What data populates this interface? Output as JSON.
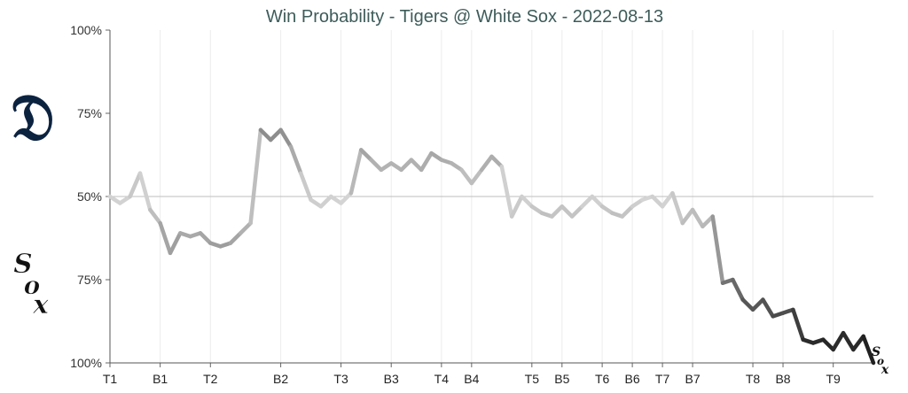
{
  "chart_data": {
    "type": "line",
    "title": "Win Probability - Tigers @ White Sox - 2022-08-13",
    "ylim": [
      0,
      100
    ],
    "y_tick_labels": [
      "100%",
      "75%",
      "50%",
      "75%",
      "100%"
    ],
    "x_ticks": [
      {
        "label": "T1",
        "at": 0
      },
      {
        "label": "B1",
        "at": 5
      },
      {
        "label": "T2",
        "at": 10
      },
      {
        "label": "B2",
        "at": 17
      },
      {
        "label": "T3",
        "at": 23
      },
      {
        "label": "B3",
        "at": 28
      },
      {
        "label": "T4",
        "at": 33
      },
      {
        "label": "B4",
        "at": 36
      },
      {
        "label": "T5",
        "at": 42
      },
      {
        "label": "B5",
        "at": 45
      },
      {
        "label": "T6",
        "at": 49
      },
      {
        "label": "B6",
        "at": 52
      },
      {
        "label": "T7",
        "at": 55
      },
      {
        "label": "B7",
        "at": 58
      },
      {
        "label": "T8",
        "at": 64
      },
      {
        "label": "B8",
        "at": 67
      },
      {
        "label": "T9",
        "at": 72
      }
    ],
    "home_team_win_prob": [
      50,
      48,
      50,
      57,
      46,
      42,
      33,
      39,
      38,
      39,
      36,
      35,
      36,
      39,
      42,
      70,
      67,
      70,
      65,
      57,
      49,
      47,
      50,
      48,
      51,
      64,
      61,
      58,
      60,
      58,
      61,
      58,
      63,
      61,
      60,
      58,
      54,
      58,
      62,
      59,
      44,
      50,
      47,
      45,
      44,
      47,
      44,
      47,
      50,
      47,
      45,
      44,
      47,
      49,
      50,
      47,
      51,
      42,
      46,
      41,
      44,
      24,
      25,
      19,
      16,
      19,
      14,
      15,
      16,
      7,
      6,
      7,
      4,
      9,
      4,
      8,
      0
    ],
    "grid": "vertical",
    "reference_line": 50,
    "color_scale": [
      "#d6d6d6",
      "#111111"
    ]
  },
  "logos": {
    "top": {
      "team": "Detroit Tigers",
      "icon": "old-english-d-icon",
      "color": "#0c2340"
    },
    "bottom": {
      "team": "Chicago White Sox",
      "icon": "white-sox-logo-icon",
      "color": "#111111"
    },
    "end_marker": {
      "icon": "white-sox-logo-icon"
    }
  }
}
